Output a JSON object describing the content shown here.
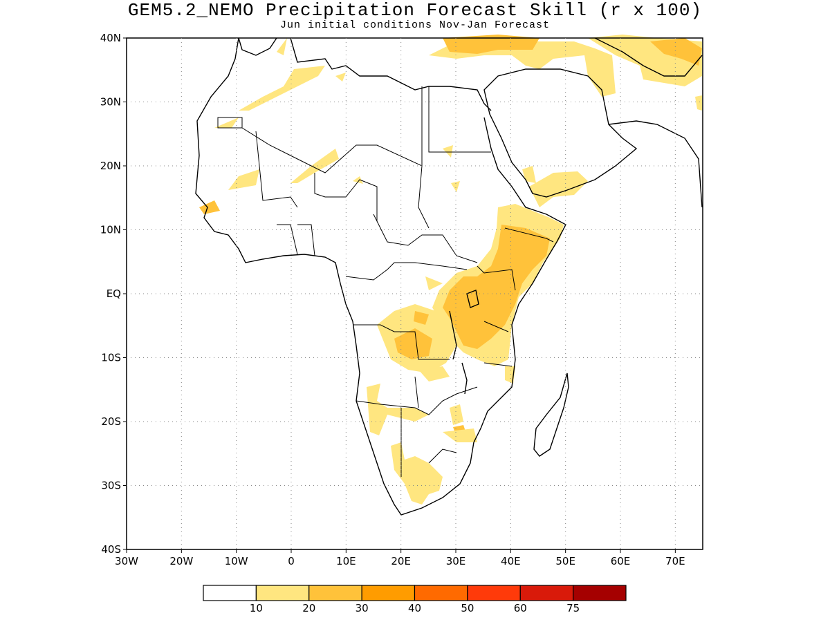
{
  "title": "GEM5.2_NEMO Precipitation Forecast Skill (r x 100)",
  "subtitle": "Jun initial conditions  Nov-Jan Forecast",
  "map": {
    "lat_labels": [
      "40N",
      "30N",
      "20N",
      "10N",
      "EQ",
      "10S",
      "20S",
      "30S",
      "40S"
    ],
    "lon_labels": [
      "30W",
      "20W",
      "10W",
      "0",
      "10E",
      "20E",
      "30E",
      "40E",
      "50E",
      "60E",
      "70E"
    ],
    "lat_range": [
      -40,
      40
    ],
    "lon_range": [
      -30,
      75
    ],
    "grid": "dotted"
  },
  "legend": {
    "colors": [
      "#ffffff",
      "#ffe680",
      "#ffc23a",
      "#ff9c00",
      "#ff6a00",
      "#ff3a0a",
      "#d91a0a",
      "#a50000"
    ],
    "labels": [
      "10",
      "20",
      "30",
      "40",
      "50",
      "60",
      "75"
    ]
  }
}
